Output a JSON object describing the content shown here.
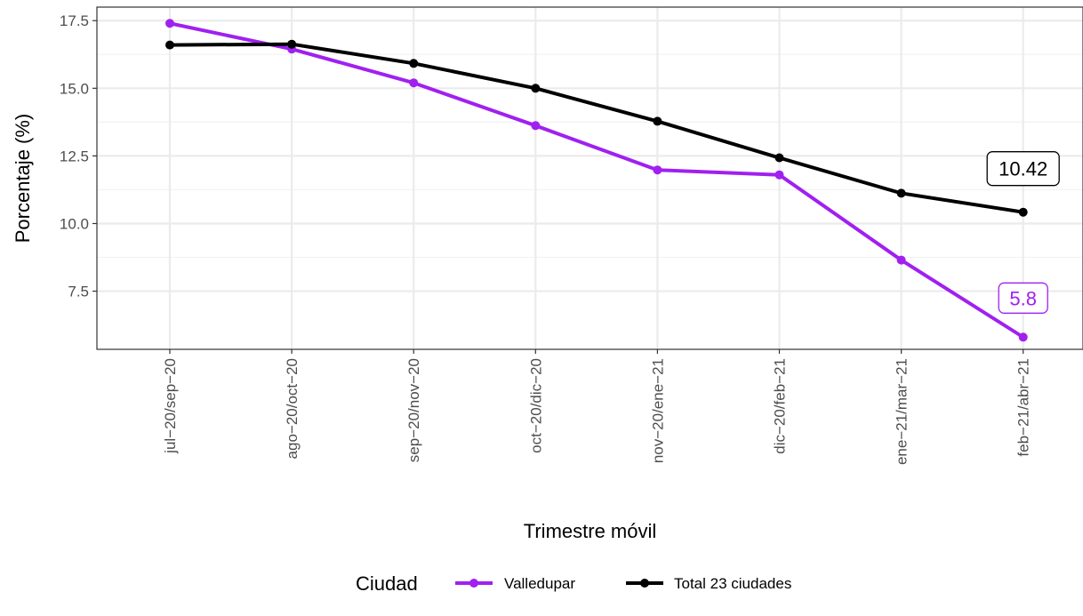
{
  "chart_data": {
    "type": "line",
    "xlabel": "Trimestre móvil",
    "ylabel": "Porcentaje (%)",
    "categories": [
      "jul−20/sep−20",
      "ago−20/oct−20",
      "sep−20/nov−20",
      "oct−20/dic−20",
      "nov−20/ene−21",
      "dic−20/feb−21",
      "ene−21/mar−21",
      "feb−21/abr−21"
    ],
    "ylim": [
      5.35,
      18.0
    ],
    "yticks": [
      7.5,
      10.0,
      12.5,
      15.0,
      17.5
    ],
    "ytick_labels": [
      "7.5",
      "10.0",
      "12.5",
      "15.0",
      "17.5"
    ],
    "grid": true,
    "legend": {
      "title": "Ciudad",
      "position": "bottom"
    },
    "series": [
      {
        "name": "Valledupar",
        "color": "#a020f0",
        "values": [
          17.4,
          16.45,
          15.2,
          13.62,
          11.98,
          11.8,
          8.65,
          5.8
        ]
      },
      {
        "name": "Total 23 ciudades",
        "color": "#000000",
        "values": [
          16.6,
          16.63,
          15.92,
          15.0,
          13.78,
          12.43,
          11.12,
          10.42
        ]
      }
    ],
    "annotations": [
      {
        "series": 0,
        "index": 7,
        "text": "5.8"
      },
      {
        "series": 1,
        "index": 7,
        "text": "10.42"
      }
    ]
  }
}
